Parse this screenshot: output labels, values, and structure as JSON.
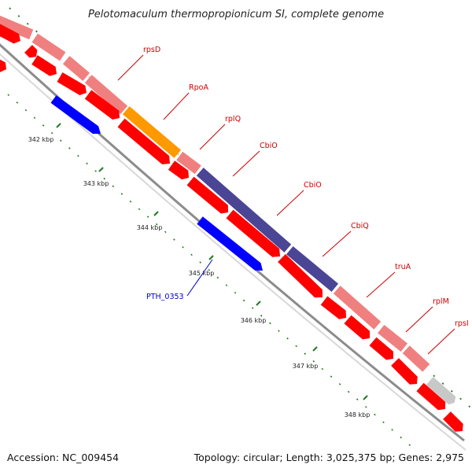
{
  "title": "Pelotomaculum thermopropionicum SI, complete genome",
  "footer": {
    "accession": "Accession: NC_009454",
    "summary": "Topology: circular; Length: 3,025,375 bp; Genes: 2,975"
  },
  "colors": {
    "background": "#ffffff",
    "backbone": "#8c8c8c",
    "tick": "#1e7a1e",
    "gene_red": "#ff0000",
    "gene_pink": "#f08080",
    "gene_orange": "#ff9900",
    "gene_navy": "#4b4596",
    "gene_blue": "#0000ff",
    "gene_grey": "#c8c8c8",
    "label_red": "#cc0000",
    "label_blue": "#0000cc"
  },
  "kbp_ticks": [
    "342 kbp",
    "343 kbp",
    "344 kbp",
    "345 kbp",
    "346 kbp",
    "347 kbp",
    "348 kbp"
  ],
  "gene_labels": [
    {
      "name": "rpsD",
      "color": "red"
    },
    {
      "name": "RpoA",
      "color": "red"
    },
    {
      "name": "rplQ",
      "color": "red"
    },
    {
      "name": "CbiO",
      "color": "red"
    },
    {
      "name": "CbiO",
      "color": "red"
    },
    {
      "name": "CbiQ",
      "color": "red"
    },
    {
      "name": "truA",
      "color": "red"
    },
    {
      "name": "rplM",
      "color": "red"
    },
    {
      "name": "rpsI",
      "color": "red"
    },
    {
      "name": "PTH_0353",
      "color": "blue"
    }
  ]
}
